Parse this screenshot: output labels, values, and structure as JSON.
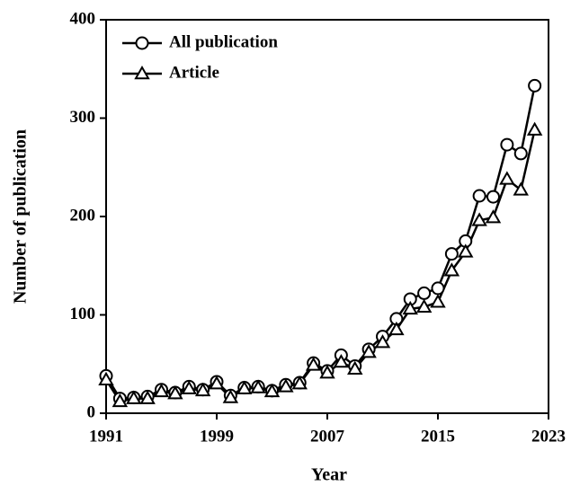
{
  "chart_data": {
    "type": "line",
    "x_label": "Year",
    "y_label": "Number of publication",
    "x": [
      1991,
      1992,
      1993,
      1994,
      1995,
      1996,
      1997,
      1998,
      1999,
      2000,
      2001,
      2002,
      2003,
      2004,
      2005,
      2006,
      2007,
      2008,
      2009,
      2010,
      2011,
      2012,
      2013,
      2014,
      2015,
      2016,
      2017,
      2018,
      2019,
      2020,
      2021,
      2022
    ],
    "series": [
      {
        "name": "All publication",
        "color": "#000000",
        "marker": "circle",
        "values": [
          38,
          15,
          16,
          17,
          24,
          21,
          27,
          24,
          32,
          18,
          26,
          27,
          23,
          29,
          31,
          51,
          43,
          59,
          48,
          65,
          78,
          96,
          116,
          122,
          127,
          162,
          175,
          221,
          220,
          273,
          264,
          333
        ]
      },
      {
        "name": "Article",
        "color": "#000000",
        "marker": "triangle",
        "values": [
          34,
          12,
          15,
          15,
          22,
          20,
          25,
          23,
          30,
          16,
          25,
          26,
          22,
          27,
          30,
          49,
          41,
          52,
          45,
          62,
          72,
          85,
          106,
          108,
          113,
          145,
          164,
          196,
          199,
          238,
          227,
          288
        ]
      }
    ],
    "xlim": [
      1991,
      2023
    ],
    "xticks": [
      1991,
      1999,
      2007,
      2015,
      2023
    ],
    "ylim": [
      0,
      400
    ],
    "yticks": [
      0,
      100,
      200,
      300,
      400
    ],
    "grid": false,
    "legend": "upper left"
  }
}
